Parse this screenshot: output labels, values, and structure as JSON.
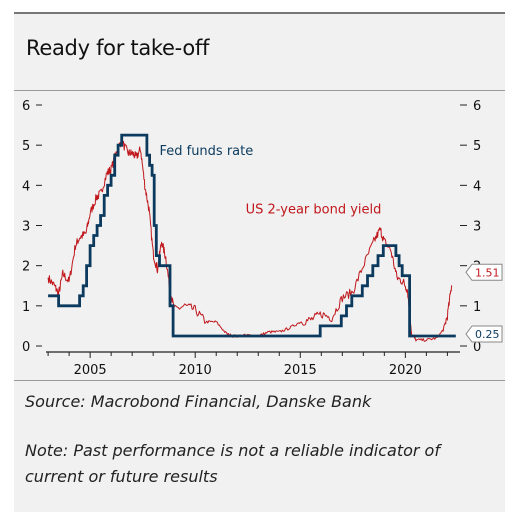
{
  "title": "Ready for take-off",
  "source": "Source: Macrobond Financial, Danske Bank",
  "note": "Note: Past performance is not a reliable indicator of current or future results",
  "colors": {
    "fed": "#0b3a5e",
    "yield": "#c0181d",
    "text": "#111111",
    "background": "#f1f1f1"
  },
  "chart_data": {
    "type": "line",
    "title": "Ready for take-off",
    "xlim": [
      2002.9,
      2022.6
    ],
    "ylim": [
      0,
      6
    ],
    "y_ticks": [
      0,
      1,
      2,
      3,
      4,
      5,
      6
    ],
    "x_ticks": [
      2005,
      2010,
      2015,
      2020
    ],
    "x_tick_labels": [
      "2005",
      "2010",
      "2015",
      "2020"
    ],
    "grid": false,
    "series": [
      {
        "name": "Fed funds rate",
        "type": "step",
        "x": [
          2003.0,
          2003.5,
          2004.5,
          2004.67,
          2004.83,
          2005.0,
          2005.17,
          2005.33,
          2005.5,
          2005.67,
          2005.83,
          2006.0,
          2006.17,
          2006.33,
          2006.5,
          2007.7,
          2007.83,
          2007.95,
          2008.05,
          2008.15,
          2008.3,
          2008.8,
          2008.95,
          2015.95,
          2016.95,
          2017.2,
          2017.45,
          2017.95,
          2018.2,
          2018.45,
          2018.7,
          2018.95,
          2019.55,
          2019.7,
          2019.85,
          2020.2,
          2022.2,
          2022.4
        ],
        "y": [
          1.25,
          1.0,
          1.25,
          1.5,
          2.0,
          2.5,
          2.75,
          3.0,
          3.25,
          3.75,
          4.0,
          4.25,
          4.75,
          5.0,
          5.25,
          4.75,
          4.5,
          4.25,
          3.0,
          2.25,
          2.0,
          1.0,
          0.25,
          0.5,
          0.75,
          1.0,
          1.25,
          1.5,
          1.75,
          2.0,
          2.25,
          2.5,
          2.25,
          2.0,
          1.75,
          0.25,
          0.25,
          0.25
        ]
      },
      {
        "name": "US 2-year bond yield",
        "type": "line",
        "x": [
          2003.0,
          2003.3,
          2003.5,
          2003.7,
          2004.0,
          2004.3,
          2004.5,
          2004.8,
          2005.0,
          2005.3,
          2005.5,
          2005.8,
          2006.0,
          2006.3,
          2006.5,
          2006.8,
          2007.0,
          2007.2,
          2007.4,
          2007.6,
          2007.8,
          2008.0,
          2008.2,
          2008.4,
          2008.6,
          2008.8,
          2009.0,
          2009.5,
          2010.0,
          2010.5,
          2011.0,
          2011.5,
          2011.8,
          2012.0,
          2012.5,
          2013.0,
          2013.5,
          2014.0,
          2014.5,
          2015.0,
          2015.5,
          2016.0,
          2016.5,
          2017.0,
          2017.5,
          2018.0,
          2018.5,
          2018.8,
          2019.0,
          2019.3,
          2019.6,
          2019.9,
          2020.1,
          2020.3,
          2020.5,
          2021.0,
          2021.5,
          2021.8,
          2022.0,
          2022.2
        ],
        "y": [
          1.7,
          1.5,
          1.3,
          1.8,
          1.6,
          2.5,
          2.7,
          2.8,
          3.3,
          3.7,
          3.8,
          4.3,
          4.4,
          4.9,
          5.1,
          4.8,
          4.8,
          4.7,
          4.9,
          4.0,
          3.4,
          2.3,
          1.9,
          2.6,
          2.2,
          1.4,
          0.9,
          1.0,
          0.9,
          0.6,
          0.6,
          0.3,
          0.25,
          0.25,
          0.27,
          0.25,
          0.35,
          0.35,
          0.45,
          0.6,
          0.65,
          0.8,
          0.7,
          1.2,
          1.35,
          2.0,
          2.6,
          2.9,
          2.6,
          2.4,
          1.7,
          1.6,
          1.4,
          0.3,
          0.15,
          0.15,
          0.2,
          0.4,
          0.75,
          1.51
        ]
      }
    ],
    "annotations": [
      {
        "text": "Fed funds rate",
        "x": 2008.3,
        "y": 4.75,
        "color": "#0b3a5e"
      },
      {
        "text": "US 2-year bond yield",
        "x": 2012.4,
        "y": 3.3,
        "color": "#c0181d"
      }
    ],
    "end_labels": [
      {
        "text": "1.51",
        "series": "US 2-year bond yield",
        "value": 1.51
      },
      {
        "text": "0.25",
        "series": "Fed funds rate",
        "value": 0.25
      }
    ]
  }
}
